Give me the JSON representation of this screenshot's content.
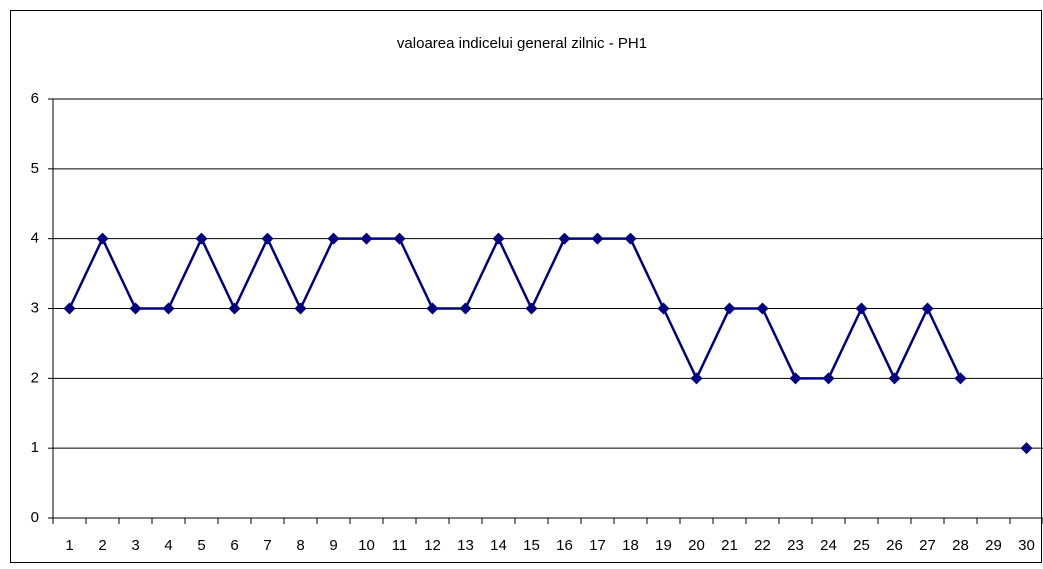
{
  "chart_data": {
    "type": "line",
    "title": "valoarea indicelui general zilnic - PH1",
    "categories": [
      1,
      2,
      3,
      4,
      5,
      6,
      7,
      8,
      9,
      10,
      11,
      12,
      13,
      14,
      15,
      16,
      17,
      18,
      19,
      20,
      21,
      22,
      23,
      24,
      25,
      26,
      27,
      28,
      29,
      30
    ],
    "series": [
      {
        "name": "PH1",
        "color": "#000080",
        "values": [
          3,
          4,
          3,
          3,
          4,
          3,
          4,
          3,
          4,
          4,
          4,
          3,
          3,
          4,
          3,
          4,
          4,
          4,
          3,
          2,
          3,
          3,
          2,
          2,
          3,
          2,
          3,
          2,
          null,
          1
        ]
      }
    ],
    "ylim": [
      0,
      6
    ],
    "yticks": [
      0,
      1,
      2,
      3,
      4,
      5,
      6
    ],
    "grid": true,
    "legend": false
  }
}
